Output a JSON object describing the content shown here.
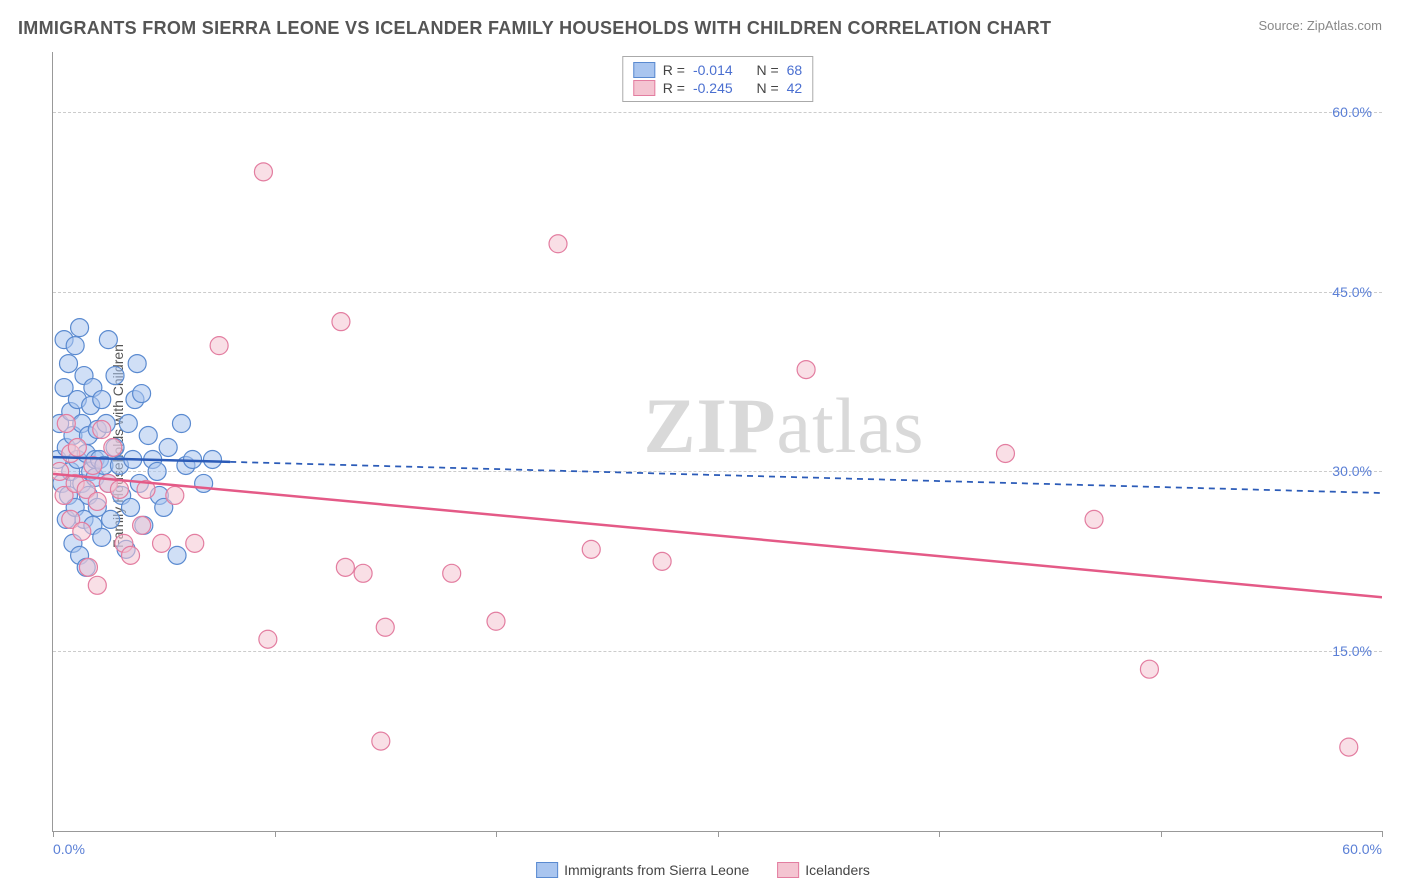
{
  "title": "IMMIGRANTS FROM SIERRA LEONE VS ICELANDER FAMILY HOUSEHOLDS WITH CHILDREN CORRELATION CHART",
  "source_prefix": "Source: ",
  "source_name": "ZipAtlas.com",
  "watermark_bold": "ZIP",
  "watermark_rest": "atlas",
  "ylabel": "Family Households with Children",
  "chart": {
    "type": "scatter",
    "xlim": [
      0,
      60
    ],
    "ylim": [
      0,
      65
    ],
    "xticks_pct": [
      0,
      10,
      20,
      30,
      40,
      50,
      60
    ],
    "yticks": [
      {
        "v": 15,
        "label": "15.0%"
      },
      {
        "v": 30,
        "label": "30.0%"
      },
      {
        "v": 45,
        "label": "45.0%"
      },
      {
        "v": 60,
        "label": "60.0%"
      }
    ],
    "xmin_label": "0.0%",
    "xmax_label": "60.0%",
    "marker_radius": 9,
    "marker_opacity": 0.55,
    "series": [
      {
        "name": "Immigrants from Sierra Leone",
        "color_fill": "#a9c5ef",
        "color_stroke": "#5a8ad0",
        "r_value": "-0.014",
        "n_value": "68",
        "trend": {
          "y_at_x0": 31.2,
          "y_at_x60": 28.2,
          "solid_until_x": 8,
          "color": "#2b5bb8",
          "width": 2.5
        },
        "points": [
          [
            0.2,
            31
          ],
          [
            0.3,
            34
          ],
          [
            0.4,
            29
          ],
          [
            0.5,
            37
          ],
          [
            0.5,
            41
          ],
          [
            0.6,
            26
          ],
          [
            0.6,
            32
          ],
          [
            0.7,
            39
          ],
          [
            0.7,
            28
          ],
          [
            0.8,
            30
          ],
          [
            0.8,
            35
          ],
          [
            0.9,
            24
          ],
          [
            0.9,
            33
          ],
          [
            1.0,
            40.5
          ],
          [
            1.0,
            27
          ],
          [
            1.1,
            31
          ],
          [
            1.1,
            36
          ],
          [
            1.2,
            23
          ],
          [
            1.2,
            42
          ],
          [
            1.3,
            29
          ],
          [
            1.3,
            34
          ],
          [
            1.4,
            26
          ],
          [
            1.4,
            38
          ],
          [
            1.5,
            31.5
          ],
          [
            1.5,
            22
          ],
          [
            1.6,
            33
          ],
          [
            1.6,
            28
          ],
          [
            1.7,
            30
          ],
          [
            1.7,
            35.5
          ],
          [
            1.8,
            25.5
          ],
          [
            1.8,
            37
          ],
          [
            1.9,
            31
          ],
          [
            1.9,
            29.5
          ],
          [
            2.0,
            33.5
          ],
          [
            2.0,
            27
          ],
          [
            2.1,
            31
          ],
          [
            2.2,
            36
          ],
          [
            2.2,
            24.5
          ],
          [
            2.3,
            30.5
          ],
          [
            2.4,
            34
          ],
          [
            2.5,
            29
          ],
          [
            2.5,
            41
          ],
          [
            2.6,
            26
          ],
          [
            2.8,
            32
          ],
          [
            2.8,
            38
          ],
          [
            3.0,
            30.5
          ],
          [
            3.1,
            28
          ],
          [
            3.3,
            23.5
          ],
          [
            3.4,
            34
          ],
          [
            3.5,
            27
          ],
          [
            3.6,
            31
          ],
          [
            3.7,
            36
          ],
          [
            3.8,
            39
          ],
          [
            3.9,
            29
          ],
          [
            4.0,
            36.5
          ],
          [
            4.1,
            25.5
          ],
          [
            4.3,
            33
          ],
          [
            4.5,
            31
          ],
          [
            4.7,
            30
          ],
          [
            4.8,
            28
          ],
          [
            5.0,
            27
          ],
          [
            5.2,
            32
          ],
          [
            5.6,
            23
          ],
          [
            5.8,
            34
          ],
          [
            6.0,
            30.5
          ],
          [
            6.3,
            31
          ],
          [
            6.8,
            29
          ],
          [
            7.2,
            31
          ]
        ]
      },
      {
        "name": "Icelanders",
        "color_fill": "#f4c4d1",
        "color_stroke": "#e37da0",
        "r_value": "-0.245",
        "n_value": "42",
        "trend": {
          "y_at_x0": 29.8,
          "y_at_x60": 19.5,
          "solid_until_x": 60,
          "color": "#e45a87",
          "width": 2.5
        },
        "points": [
          [
            0.3,
            30
          ],
          [
            0.5,
            28
          ],
          [
            0.6,
            34
          ],
          [
            0.8,
            31.5
          ],
          [
            0.8,
            26
          ],
          [
            1.0,
            29
          ],
          [
            1.1,
            32
          ],
          [
            1.3,
            25
          ],
          [
            1.5,
            28.5
          ],
          [
            1.6,
            22
          ],
          [
            1.8,
            30.5
          ],
          [
            2.0,
            27.5
          ],
          [
            2.0,
            20.5
          ],
          [
            2.2,
            33.5
          ],
          [
            2.5,
            29
          ],
          [
            2.7,
            32
          ],
          [
            3.0,
            28.5
          ],
          [
            3.2,
            24
          ],
          [
            3.5,
            23
          ],
          [
            4.0,
            25.5
          ],
          [
            4.2,
            28.5
          ],
          [
            4.9,
            24
          ],
          [
            5.5,
            28
          ],
          [
            6.4,
            24
          ],
          [
            7.5,
            40.5
          ],
          [
            9.5,
            55
          ],
          [
            9.7,
            16
          ],
          [
            13.0,
            42.5
          ],
          [
            13.2,
            22
          ],
          [
            14.0,
            21.5
          ],
          [
            15.0,
            17
          ],
          [
            14.8,
            7.5
          ],
          [
            18.0,
            21.5
          ],
          [
            20.0,
            17.5
          ],
          [
            22.8,
            49
          ],
          [
            24.3,
            23.5
          ],
          [
            27.5,
            22.5
          ],
          [
            34.0,
            38.5
          ],
          [
            43.0,
            31.5
          ],
          [
            47.0,
            26
          ],
          [
            49.5,
            13.5
          ],
          [
            58.5,
            7
          ]
        ]
      }
    ]
  },
  "legend_top_r_label": "R =",
  "legend_top_n_label": "N ="
}
